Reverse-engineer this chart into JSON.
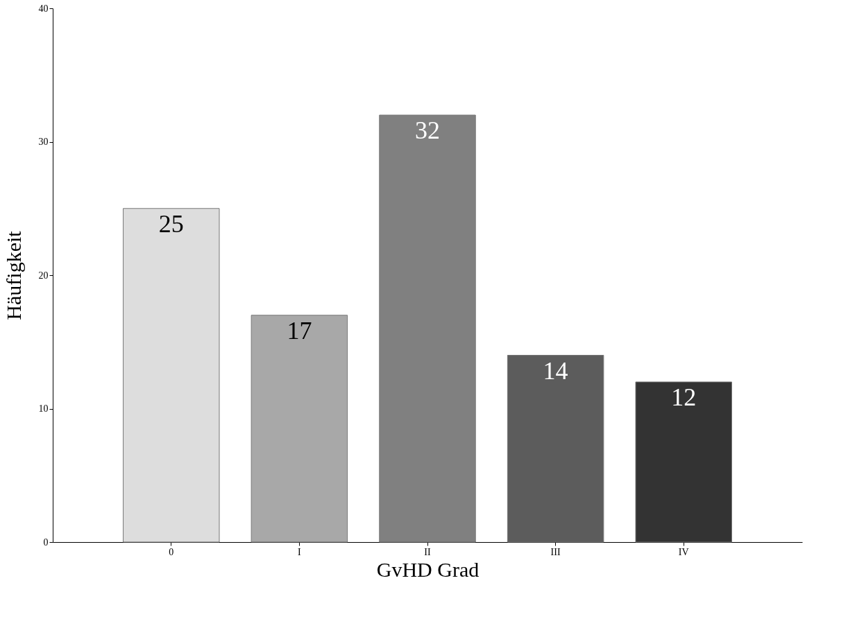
{
  "chart_data": {
    "type": "bar",
    "xlabel": "GvHD Grad",
    "ylabel": "Häufigkeit",
    "categories": [
      "0",
      "I",
      "II",
      "III",
      "IV"
    ],
    "values": [
      25,
      17,
      32,
      14,
      12
    ],
    "colors": [
      "#dddddd",
      "#a8a8a8",
      "#808080",
      "#5c5c5c",
      "#333333"
    ],
    "ylim": [
      0,
      40
    ],
    "yticks": [
      0,
      10,
      20,
      30,
      40
    ],
    "grid": false,
    "data_labels": true
  }
}
